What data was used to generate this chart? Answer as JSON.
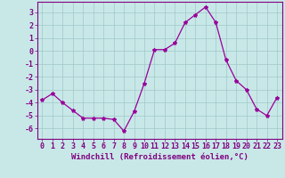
{
  "x": [
    0,
    1,
    2,
    3,
    4,
    5,
    6,
    7,
    8,
    9,
    10,
    11,
    12,
    13,
    14,
    15,
    16,
    17,
    18,
    19,
    20,
    21,
    22,
    23
  ],
  "y": [
    -3.8,
    -3.3,
    -4.0,
    -4.6,
    -5.2,
    -5.2,
    -5.2,
    -5.3,
    -6.2,
    -4.7,
    -2.5,
    0.1,
    0.1,
    0.6,
    2.2,
    2.8,
    3.4,
    2.2,
    -0.7,
    -2.3,
    -3.0,
    -4.5,
    -5.0,
    -3.6
  ],
  "line_color": "#990099",
  "marker": "*",
  "marker_size": 3,
  "bg_color": "#c8e8e8",
  "grid_color": "#a0c8c8",
  "xlabel": "Windchill (Refroidissement éolien,°C)",
  "ylim": [
    -6.8,
    3.8
  ],
  "xlim": [
    -0.5,
    23.5
  ],
  "yticks": [
    -6,
    -5,
    -4,
    -3,
    -2,
    -1,
    0,
    1,
    2,
    3
  ],
  "xtick_labels": [
    "0",
    "1",
    "2",
    "3",
    "4",
    "5",
    "6",
    "7",
    "8",
    "9",
    "10",
    "11",
    "12",
    "13",
    "14",
    "15",
    "16",
    "17",
    "18",
    "19",
    "20",
    "21",
    "22",
    "23"
  ],
  "axis_color": "#800080",
  "label_fontsize": 6.5,
  "tick_fontsize": 6.0
}
